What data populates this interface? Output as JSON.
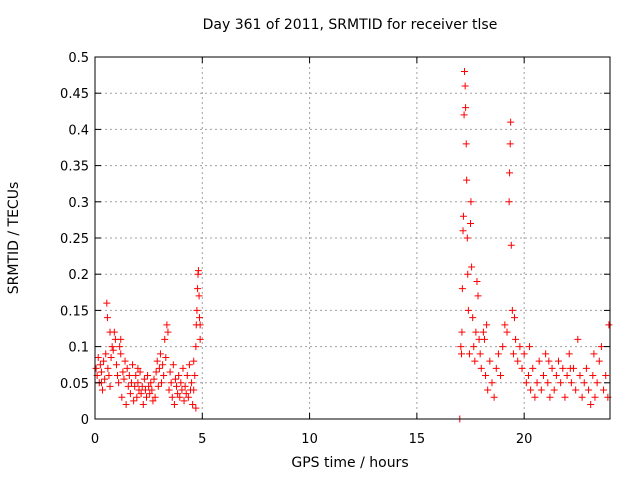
{
  "chart_data": {
    "type": "scatter",
    "title": "Day 361 of 2011, SRMTID for receiver tlse",
    "xlabel": "GPS time / hours",
    "ylabel": "SRMTID / TECUs",
    "xlim": [
      0,
      24
    ],
    "ylim": [
      0,
      0.5
    ],
    "xticks": [
      0,
      5,
      10,
      15,
      20
    ],
    "yticks": [
      0,
      0.05,
      0.1,
      0.15,
      0.2,
      0.25,
      0.3,
      0.35,
      0.4,
      0.45,
      0.5
    ],
    "ytick_labels": [
      "0",
      "0.05",
      "0.1",
      "0.15",
      "0.2",
      "0.25",
      "0.3",
      "0.35",
      "0.4",
      "0.45",
      "0.5"
    ],
    "grid": true,
    "marker": "+",
    "color": "#ff0000",
    "series": [
      {
        "name": "SRMTID",
        "points": [
          [
            0.05,
            0.07
          ],
          [
            0.1,
            0.06
          ],
          [
            0.15,
            0.085
          ],
          [
            0.2,
            0.05
          ],
          [
            0.25,
            0.075
          ],
          [
            0.3,
            0.065
          ],
          [
            0.35,
            0.04
          ],
          [
            0.4,
            0.08
          ],
          [
            0.45,
            0.055
          ],
          [
            0.5,
            0.09
          ],
          [
            0.55,
            0.16
          ],
          [
            0.58,
            0.14
          ],
          [
            0.6,
            0.07
          ],
          [
            0.65,
            0.06
          ],
          [
            0.7,
            0.045
          ],
          [
            0.75,
            0.085
          ],
          [
            0.8,
            0.1
          ],
          [
            0.85,
            0.095
          ],
          [
            0.9,
            0.12
          ],
          [
            0.95,
            0.11
          ],
          [
            1.0,
            0.075
          ],
          [
            1.05,
            0.06
          ],
          [
            1.1,
            0.05
          ],
          [
            1.15,
            0.1
          ],
          [
            1.2,
            0.09
          ],
          [
            1.25,
            0.03
          ],
          [
            1.3,
            0.065
          ],
          [
            1.35,
            0.055
          ],
          [
            1.4,
            0.08
          ],
          [
            1.45,
            0.02
          ],
          [
            1.5,
            0.07
          ],
          [
            1.55,
            0.045
          ],
          [
            1.6,
            0.06
          ],
          [
            1.65,
            0.035
          ],
          [
            1.7,
            0.05
          ],
          [
            1.75,
            0.075
          ],
          [
            1.8,
            0.025
          ],
          [
            1.85,
            0.045
          ],
          [
            1.9,
            0.06
          ],
          [
            1.95,
            0.03
          ],
          [
            2.0,
            0.05
          ],
          [
            2.05,
            0.04
          ],
          [
            2.1,
            0.065
          ],
          [
            2.15,
            0.035
          ],
          [
            2.2,
            0.045
          ],
          [
            2.25,
            0.02
          ],
          [
            2.3,
            0.055
          ],
          [
            2.35,
            0.04
          ],
          [
            2.4,
            0.03
          ],
          [
            2.45,
            0.06
          ],
          [
            2.5,
            0.045
          ],
          [
            2.55,
            0.035
          ],
          [
            2.6,
            0.05
          ],
          [
            2.65,
            0.04
          ],
          [
            2.7,
            0.025
          ],
          [
            2.75,
            0.055
          ],
          [
            2.8,
            0.03
          ],
          [
            2.85,
            0.065
          ],
          [
            2.9,
            0.08
          ],
          [
            2.95,
            0.045
          ],
          [
            3.0,
            0.07
          ],
          [
            3.05,
            0.09
          ],
          [
            3.1,
            0.05
          ],
          [
            3.15,
            0.075
          ],
          [
            3.2,
            0.06
          ],
          [
            3.25,
            0.11
          ],
          [
            3.3,
            0.085
          ],
          [
            3.35,
            0.13
          ],
          [
            3.4,
            0.12
          ],
          [
            3.45,
            0.04
          ],
          [
            3.5,
            0.065
          ],
          [
            3.55,
            0.05
          ],
          [
            3.6,
            0.03
          ],
          [
            3.65,
            0.075
          ],
          [
            3.7,
            0.02
          ],
          [
            3.75,
            0.055
          ],
          [
            3.8,
            0.045
          ],
          [
            3.85,
            0.035
          ],
          [
            3.9,
            0.06
          ],
          [
            3.95,
            0.03
          ],
          [
            4.0,
            0.05
          ],
          [
            4.05,
            0.04
          ],
          [
            4.1,
            0.07
          ],
          [
            4.15,
            0.025
          ],
          [
            4.2,
            0.045
          ],
          [
            4.25,
            0.035
          ],
          [
            4.3,
            0.06
          ],
          [
            4.35,
            0.03
          ],
          [
            4.4,
            0.075
          ],
          [
            4.45,
            0.04
          ],
          [
            4.5,
            0.05
          ],
          [
            4.55,
            0.02
          ],
          [
            4.6,
            0.08
          ],
          [
            4.65,
            0.06
          ],
          [
            4.7,
            0.1
          ],
          [
            4.72,
            0.13
          ],
          [
            4.75,
            0.15
          ],
          [
            4.78,
            0.18
          ],
          [
            4.8,
            0.2
          ],
          [
            4.82,
            0.205
          ],
          [
            4.85,
            0.17
          ],
          [
            4.87,
            0.14
          ],
          [
            4.9,
            0.13
          ],
          [
            4.9,
            0.11
          ],
          [
            4.6,
            0.04
          ],
          [
            4.7,
            0.015
          ],
          [
            1.2,
            0.11
          ],
          [
            0.7,
            0.12
          ],
          [
            0.3,
            0.05
          ],
          [
            2.0,
            0.07
          ],
          [
            17.0,
            0.0
          ],
          [
            17.05,
            0.1
          ],
          [
            17.08,
            0.09
          ],
          [
            17.1,
            0.12
          ],
          [
            17.12,
            0.18
          ],
          [
            17.15,
            0.26
          ],
          [
            17.17,
            0.28
          ],
          [
            17.2,
            0.42
          ],
          [
            17.22,
            0.48
          ],
          [
            17.25,
            0.46
          ],
          [
            17.27,
            0.43
          ],
          [
            17.3,
            0.38
          ],
          [
            17.32,
            0.33
          ],
          [
            17.35,
            0.25
          ],
          [
            17.37,
            0.2
          ],
          [
            17.4,
            0.15
          ],
          [
            17.45,
            0.09
          ],
          [
            17.5,
            0.27
          ],
          [
            17.52,
            0.3
          ],
          [
            17.55,
            0.21
          ],
          [
            17.6,
            0.14
          ],
          [
            17.65,
            0.1
          ],
          [
            17.7,
            0.08
          ],
          [
            17.75,
            0.12
          ],
          [
            17.8,
            0.19
          ],
          [
            17.85,
            0.17
          ],
          [
            17.9,
            0.11
          ],
          [
            17.95,
            0.09
          ],
          [
            18.0,
            0.07
          ],
          [
            18.1,
            0.12
          ],
          [
            18.2,
            0.06
          ],
          [
            18.3,
            0.04
          ],
          [
            18.4,
            0.08
          ],
          [
            18.5,
            0.05
          ],
          [
            18.6,
            0.03
          ],
          [
            18.7,
            0.07
          ],
          [
            18.8,
            0.09
          ],
          [
            18.9,
            0.06
          ],
          [
            19.0,
            0.1
          ],
          [
            19.1,
            0.13
          ],
          [
            19.2,
            0.12
          ],
          [
            19.3,
            0.3
          ],
          [
            19.32,
            0.34
          ],
          [
            19.35,
            0.38
          ],
          [
            19.37,
            0.41
          ],
          [
            19.4,
            0.24
          ],
          [
            19.45,
            0.15
          ],
          [
            19.5,
            0.09
          ],
          [
            19.6,
            0.11
          ],
          [
            19.7,
            0.08
          ],
          [
            19.8,
            0.1
          ],
          [
            19.9,
            0.07
          ],
          [
            20.0,
            0.09
          ],
          [
            20.1,
            0.05
          ],
          [
            20.2,
            0.06
          ],
          [
            20.3,
            0.04
          ],
          [
            20.4,
            0.07
          ],
          [
            20.5,
            0.03
          ],
          [
            20.6,
            0.05
          ],
          [
            20.7,
            0.08
          ],
          [
            20.8,
            0.04
          ],
          [
            20.9,
            0.06
          ],
          [
            21.0,
            0.09
          ],
          [
            21.1,
            0.05
          ],
          [
            21.2,
            0.03
          ],
          [
            21.3,
            0.07
          ],
          [
            21.4,
            0.04
          ],
          [
            21.5,
            0.06
          ],
          [
            21.6,
            0.08
          ],
          [
            21.7,
            0.05
          ],
          [
            21.8,
            0.07
          ],
          [
            21.9,
            0.03
          ],
          [
            22.0,
            0.06
          ],
          [
            22.1,
            0.09
          ],
          [
            22.2,
            0.05
          ],
          [
            22.3,
            0.07
          ],
          [
            22.4,
            0.04
          ],
          [
            22.5,
            0.11
          ],
          [
            22.6,
            0.06
          ],
          [
            22.7,
            0.03
          ],
          [
            22.8,
            0.05
          ],
          [
            22.9,
            0.07
          ],
          [
            23.0,
            0.04
          ],
          [
            23.1,
            0.02
          ],
          [
            23.2,
            0.06
          ],
          [
            23.3,
            0.03
          ],
          [
            23.4,
            0.05
          ],
          [
            23.5,
            0.08
          ],
          [
            23.6,
            0.1
          ],
          [
            23.7,
            0.04
          ],
          [
            23.8,
            0.06
          ],
          [
            23.9,
            0.03
          ],
          [
            23.95,
            0.13
          ],
          [
            18.15,
            0.11
          ],
          [
            18.25,
            0.13
          ],
          [
            19.55,
            0.14
          ],
          [
            20.25,
            0.1
          ],
          [
            21.15,
            0.08
          ],
          [
            22.15,
            0.07
          ],
          [
            23.25,
            0.09
          ]
        ]
      }
    ]
  }
}
